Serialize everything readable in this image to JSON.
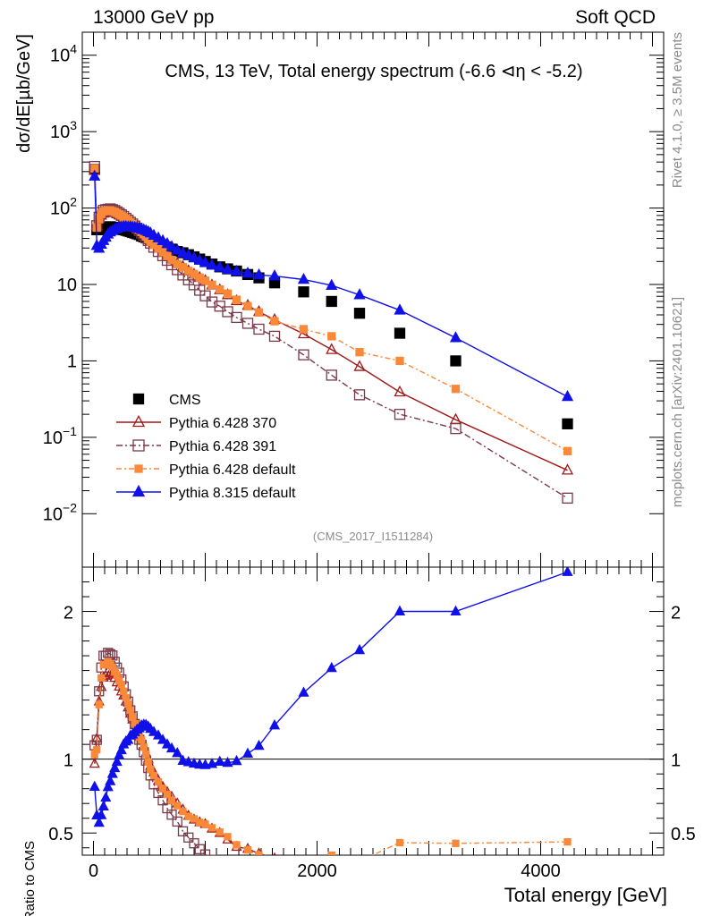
{
  "header": {
    "left": "13000 GeV pp",
    "right": "Soft QCD"
  },
  "side": {
    "top": "Rivet 4.1.0, ≥ 3.5M events",
    "bottom": "mcplots.cern.ch [arXiv:2401.10621]"
  },
  "chart_data": {
    "type": "line",
    "title": "CMS, 13 TeV, Total energy spectrum (-6.6 ⊲η < -5.2)",
    "analysis_id": "(CMS_2017_I1511284)",
    "xlabel": "Total energy [GeV]",
    "ylabel": "dσ/dE[µb/GeV]",
    "ratio_ylabel": "Ratio to CMS",
    "xlim": [
      -100,
      5100
    ],
    "ylim": [
      0.002,
      20000
    ],
    "yscale": "log",
    "ratio_ylim": [
      0.35,
      2.3
    ],
    "x_ticks": [
      "0",
      "2000",
      "4000"
    ],
    "y_ticks": [
      {
        "v": 10000,
        "base": "10",
        "exp": "4"
      },
      {
        "v": 1000,
        "base": "10",
        "exp": "3"
      },
      {
        "v": 100,
        "base": "10",
        "exp": "2"
      },
      {
        "v": 10,
        "base": "10",
        "exp": ""
      },
      {
        "v": 1,
        "base": "1",
        "exp": ""
      },
      {
        "v": 0.1,
        "base": "10",
        "exp": "−1"
      },
      {
        "v": 0.01,
        "base": "10",
        "exp": "−2"
      }
    ],
    "ratio_ticks": [
      "2",
      "1",
      "0.5"
    ],
    "x": [
      10,
      30,
      50,
      70,
      90,
      110,
      130,
      150,
      170,
      190,
      210,
      230,
      250,
      270,
      290,
      310,
      330,
      350,
      370,
      390,
      410,
      430,
      450,
      470,
      490,
      510,
      540,
      580,
      620,
      660,
      700,
      750,
      800,
      850,
      900,
      950,
      1000,
      1060,
      1130,
      1200,
      1280,
      1380,
      1480,
      1620,
      1880,
      2130,
      2380,
      2740,
      3240,
      4240
    ],
    "series": [
      {
        "name": "CMS",
        "marker": "square-filled",
        "color": "#000000",
        "dash": "",
        "values": [
          320,
          52,
          52,
          54,
          55,
          56,
          56,
          57,
          56,
          56,
          55,
          54,
          53,
          52,
          51,
          50,
          49,
          48,
          47,
          46,
          45,
          43,
          42,
          41,
          40,
          39,
          37,
          35,
          33,
          31,
          29,
          27,
          26,
          24.5,
          23,
          21.5,
          20,
          18.5,
          17,
          16,
          15,
          13.5,
          12.2,
          10.5,
          8.0,
          6.0,
          4.2,
          2.3,
          1.0,
          0.15
        ]
      },
      {
        "name": "Pythia 6.428 370",
        "marker": "triangle-open",
        "color": "#a01818",
        "dash": "",
        "values": [
          310,
          59.3,
          72.3,
          80.4,
          85.4,
          87.6,
          89.1,
          90.2,
          88.1,
          86.8,
          83.6,
          80.5,
          77.3,
          74.4,
          70.9,
          67.5,
          64.1,
          60.9,
          57.8,
          54.7,
          51.8,
          48.4,
          45.6,
          42.7,
          40.1,
          37.2,
          33.7,
          29.9,
          26.8,
          24.1,
          21.6,
          18.9,
          17.1,
          15.1,
          13.6,
          12.3,
          11.2,
          9.8,
          8.5,
          7.3,
          6.1,
          5.3,
          4.4,
          3.45,
          2.25,
          1.4,
          0.84,
          0.39,
          0.17,
          0.037
        ]
      },
      {
        "name": "Pythia 6.428 391",
        "marker": "square-open",
        "color": "#7a3848",
        "dash": "7,3,2,3",
        "values": [
          350,
          58.8,
          75.9,
          87.5,
          93.5,
          95.2,
          96.3,
          97.5,
          95.3,
          92.9,
          89.1,
          85.6,
          81.6,
          77.6,
          73.4,
          69.5,
          65.2,
          61.9,
          58.2,
          54.5,
          50.9,
          47.2,
          44.0,
          40.6,
          37.6,
          34.7,
          30.7,
          27.0,
          23.8,
          20.7,
          18.1,
          15.6,
          13.3,
          11.5,
          9.9,
          8.4,
          7.1,
          5.9,
          5.2,
          4.4,
          3.7,
          3.1,
          2.6,
          2.1,
          1.2,
          0.65,
          0.36,
          0.2,
          0.13,
          0.016
        ]
      },
      {
        "name": "Pythia 6.428 default",
        "marker": "square-filled",
        "color": "#f98839",
        "dash": "6,3,2,3",
        "values": [
          330,
          55.3,
          71.2,
          83.7,
          90.2,
          91.8,
          93.0,
          93.5,
          90.9,
          89.1,
          86.2,
          82.6,
          79.8,
          75.9,
          72.2,
          68.6,
          65.2,
          61.6,
          58.2,
          55.0,
          51.8,
          48.6,
          45.4,
          42.4,
          39.2,
          36.3,
          32.9,
          29.6,
          26.4,
          23.6,
          20.9,
          18.5,
          16.8,
          15.0,
          13.7,
          12.3,
          11.2,
          9.9,
          8.6,
          7.6,
          6.3,
          5.2,
          4.3,
          3.3,
          2.6,
          2.1,
          1.3,
          1.0,
          0.43,
          0.066
        ]
      },
      {
        "name": "Pythia 8.315 default",
        "marker": "triangle-filled",
        "color": "#1010e8",
        "dash": "",
        "values": [
          260,
          32.2,
          29.6,
          33.5,
          37.4,
          41.4,
          45.4,
          48.5,
          50.4,
          52.6,
          54.0,
          55.4,
          56.2,
          57.2,
          57.1,
          56.5,
          56.8,
          56.0,
          55.6,
          55.2,
          54.4,
          52.8,
          51.8,
          50.5,
          48.8,
          47.0,
          43.8,
          40.6,
          37.3,
          34.1,
          31.1,
          28.1,
          25.7,
          24.0,
          22.3,
          20.7,
          19.2,
          17.9,
          16.7,
          15.6,
          14.8,
          14.0,
          13.3,
          12.9,
          11.6,
          9.7,
          7.3,
          4.6,
          2.0,
          0.34
        ]
      }
    ]
  }
}
